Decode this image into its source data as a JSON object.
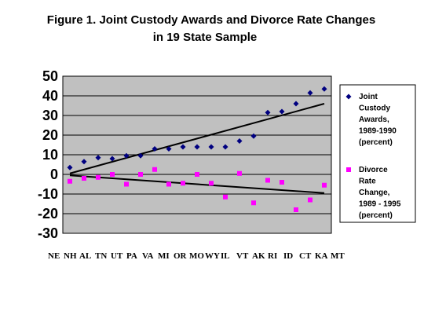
{
  "chart_data": {
    "type": "scatter",
    "title_line1": "Figure 1.  Joint Custody Awards and Divorce Rate Changes",
    "title_line2": "in 19 State Sample",
    "xlabel": "",
    "ylabel": "",
    "ylim": [
      -30,
      50
    ],
    "yticks": [
      "50",
      "40",
      "30",
      "20",
      "10",
      "0",
      "-10",
      "-20",
      "-30"
    ],
    "ytick_values": [
      50,
      40,
      30,
      20,
      10,
      0,
      -10,
      -20,
      -30
    ],
    "categories": [
      "NE",
      "NH",
      "AL",
      "TN",
      "UT",
      "PA",
      "VA",
      "MI",
      "OR",
      "MO",
      "WY",
      "IL",
      "VT",
      "AK",
      "RI",
      "ID",
      "CT",
      "KA",
      "MT"
    ],
    "grid": true,
    "plot_background": "#c0c0c0",
    "legend_position": "right",
    "series": [
      {
        "name_lines": [
          "Joint",
          "Custody",
          "Awards,",
          "1989-1990",
          "(percent)"
        ],
        "marker": "diamond",
        "color": "#000080",
        "values": [
          3.5,
          6.5,
          8.5,
          8,
          9.5,
          9.5,
          13,
          13,
          14,
          14,
          14,
          14,
          17,
          19.5,
          31.5,
          32,
          36,
          41.5,
          43.5
        ],
        "trendline": [
          0.5,
          36
        ]
      },
      {
        "name_lines": [
          "Divorce",
          "Rate",
          "Change,",
          "1989 - 1995",
          "(percent)"
        ],
        "marker": "square",
        "color": "#ff00ff",
        "values": [
          -3.5,
          -2,
          -1.5,
          0,
          -5,
          0,
          2.5,
          -5,
          -4.5,
          0,
          -4.5,
          -11.5,
          0.5,
          -14.5,
          -3,
          -4,
          -18,
          -13,
          -5.5
        ],
        "trendline": [
          -0.5,
          -9.5
        ]
      }
    ]
  }
}
